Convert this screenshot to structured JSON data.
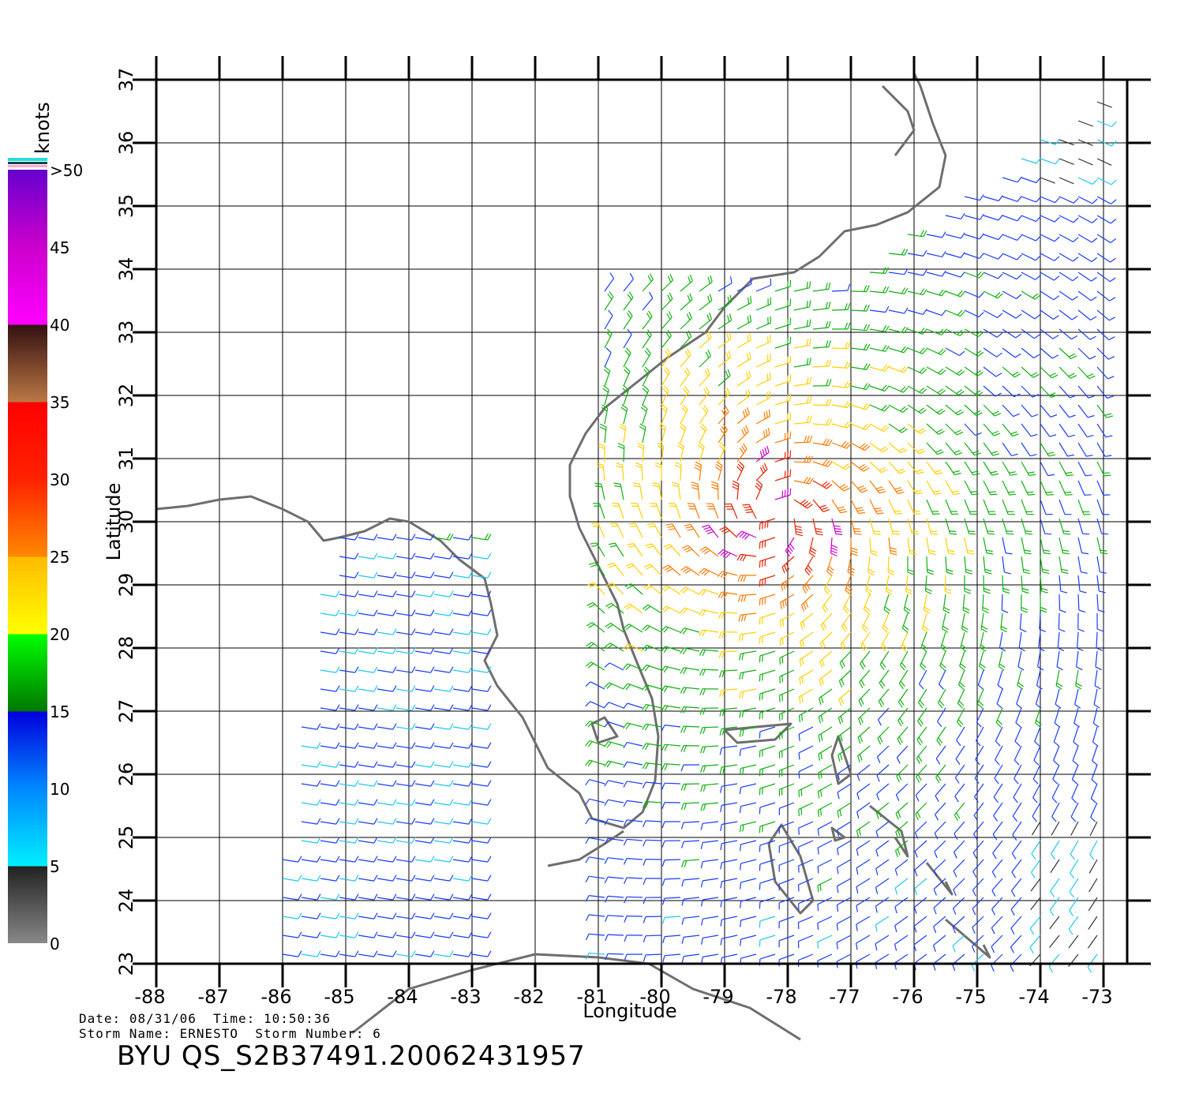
{
  "map": {
    "axes": {
      "xlabel": "Longitude",
      "ylabel": "Latitude",
      "xlim": [
        -88,
        -72.6
      ],
      "ylim": [
        23,
        37
      ],
      "x_ticks": [
        "-88",
        "-87",
        "-86",
        "-85",
        "-84",
        "-83",
        "-82",
        "-81",
        "-80",
        "-79",
        "-78",
        "-77",
        "-76",
        "-75",
        "-74",
        "-73"
      ],
      "y_ticks": [
        "23",
        "24",
        "25",
        "26",
        "27",
        "28",
        "29",
        "30",
        "31",
        "32",
        "33",
        "34",
        "35",
        "36",
        "37"
      ],
      "grid": true
    },
    "colorbar": {
      "unit_label": "knots",
      "labels": [
        "0",
        "5",
        "10",
        "15",
        "20",
        "25",
        "30",
        "35",
        "40",
        "45",
        ">50"
      ],
      "bands": [
        {
          "range": [
            0,
            5
          ],
          "colors": [
            "#888888",
            "#222222"
          ]
        },
        {
          "range": [
            5,
            15
          ],
          "colors": [
            "#00eeff",
            "#0088ff",
            "#0000dd"
          ]
        },
        {
          "range": [
            15,
            20
          ],
          "colors": [
            "#007700",
            "#00ff00"
          ]
        },
        {
          "range": [
            20,
            25
          ],
          "colors": [
            "#ffff00",
            "#ffbb00"
          ]
        },
        {
          "range": [
            25,
            35
          ],
          "colors": [
            "#ff8800",
            "#ff2200",
            "#ff0000"
          ]
        },
        {
          "range": [
            35,
            40
          ],
          "colors": [
            "#bb7744",
            "#331111"
          ]
        },
        {
          "range": [
            40,
            50
          ],
          "colors": [
            "#ff00ff",
            "#9900cc"
          ]
        },
        {
          "range": [
            50,
            55
          ],
          "colors": [
            "#6600cc"
          ]
        }
      ]
    },
    "storm_center": {
      "lon": -78.2,
      "lat": 30.1
    },
    "colors": {
      "coastline": "#6e6e6e",
      "grid": "#000000",
      "wind_0_5": "#333333",
      "wind_5_10": "#1ec8f0",
      "wind_10_15": "#1a3cff",
      "wind_15_20": "#10b010",
      "wind_20_25": "#ffd000",
      "wind_25_30": "#ff7a00",
      "wind_30_35": "#e82000",
      "wind_40_plus": "#cc00cc"
    }
  },
  "info": {
    "date_label": "Date:",
    "date_value": "08/31/06",
    "time_label": "Time:",
    "time_value": "10:50:36",
    "storm_name_label": "Storm Name:",
    "storm_name_value": "ERNESTO",
    "storm_number_label": "Storm Number:",
    "storm_number_value": "6"
  },
  "title": "BYU QS_S2B37491.20062431957"
}
